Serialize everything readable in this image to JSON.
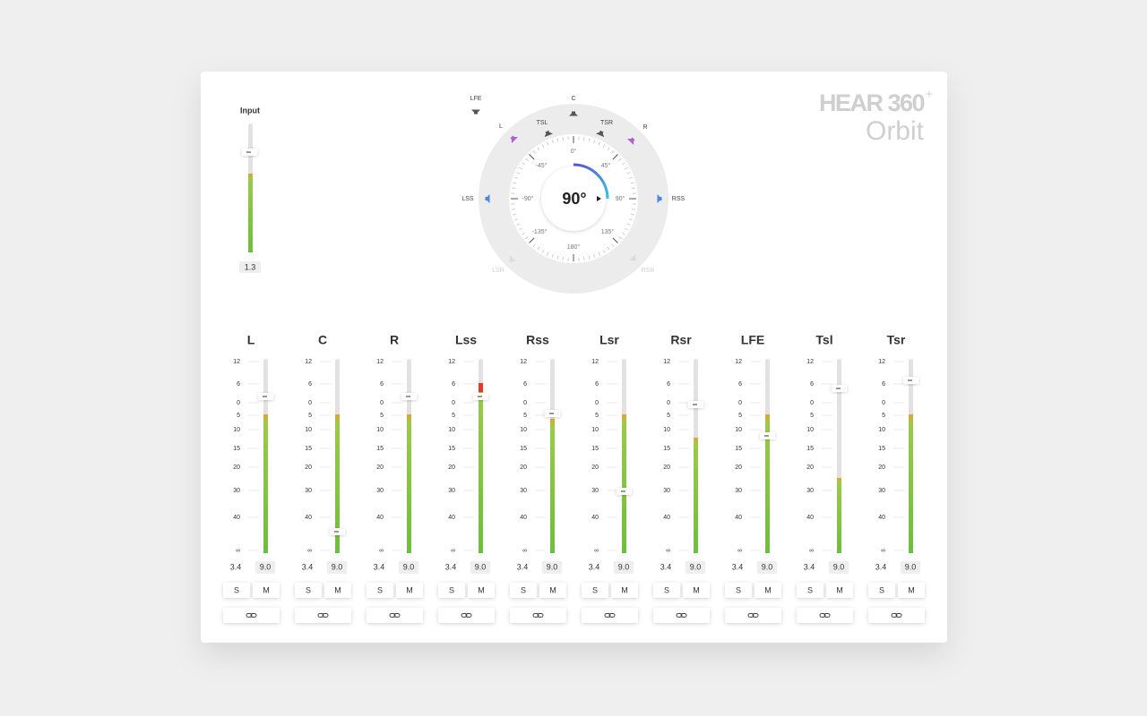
{
  "logo": {
    "brand": "HEAR 360",
    "sup": "+",
    "product": "Orbit"
  },
  "input": {
    "label": "Input",
    "value": "1.3"
  },
  "panner": {
    "angle": "90°",
    "speakers": [
      {
        "label": "LFE"
      },
      {
        "label": "C"
      },
      {
        "label": "L"
      },
      {
        "label": "TSL"
      },
      {
        "label": "TSR"
      },
      {
        "label": "R"
      },
      {
        "label": "LSS"
      },
      {
        "label": "RSS"
      },
      {
        "label": "LSR"
      },
      {
        "label": "RSR"
      }
    ],
    "degrees": [
      "0°",
      "45°",
      "90°",
      "135°",
      "180°",
      "-135°",
      "-90°",
      "-45°"
    ]
  },
  "scale": [
    "12",
    "6",
    "0",
    "5",
    "10",
    "15",
    "20",
    "30",
    "40",
    "∞"
  ],
  "channels": [
    {
      "name": "L",
      "left": "3.4",
      "right": "9.0",
      "solo": "S",
      "mute": "M"
    },
    {
      "name": "C",
      "left": "3.4",
      "right": "9.0",
      "solo": "S",
      "mute": "M"
    },
    {
      "name": "R",
      "left": "3.4",
      "right": "9.0",
      "solo": "S",
      "mute": "M"
    },
    {
      "name": "Lss",
      "left": "3.4",
      "right": "9.0",
      "solo": "S",
      "mute": "M"
    },
    {
      "name": "Rss",
      "left": "3.4",
      "right": "9.0",
      "solo": "S",
      "mute": "M"
    },
    {
      "name": "Lsr",
      "left": "3.4",
      "right": "9.0",
      "solo": "S",
      "mute": "M"
    },
    {
      "name": "Rsr",
      "left": "3.4",
      "right": "9.0",
      "solo": "S",
      "mute": "M"
    },
    {
      "name": "LFE",
      "left": "3.4",
      "right": "9.0",
      "solo": "S",
      "mute": "M"
    },
    {
      "name": "Tsl",
      "left": "3.4",
      "right": "9.0",
      "solo": "S",
      "mute": "M"
    },
    {
      "name": "Tsr",
      "left": "3.4",
      "right": "9.0",
      "solo": "S",
      "mute": "M"
    }
  ]
}
